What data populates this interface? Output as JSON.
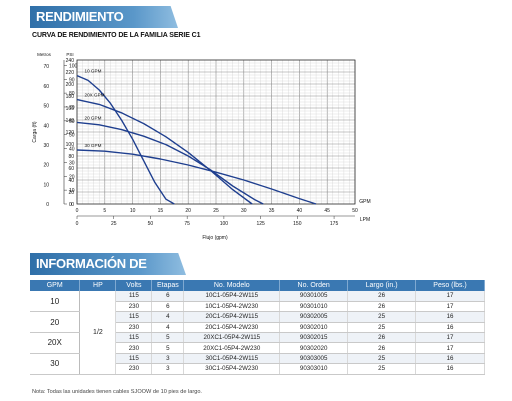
{
  "banner_rendimiento": "RENDIMIENTO",
  "subtitle": "CURVA DE RENDIMIENTO DE LA FAMILIA SERIE C1",
  "banner_pedido": "INFORMACIÓN DE PEDIDO",
  "note": "Nota: Todas las unidades tienen cables SJOOW de 10 pies de largo.",
  "chart_data": {
    "type": "line",
    "title": "CURVA DE RENDIMIENTO DE LA FAMILIA SERIE C1",
    "xlabel": "Flujo (gpm)",
    "ylabel_left": "Carga (ft)",
    "ylabel_right": "PSI",
    "ylabel_meters": "Metros",
    "x_units_gpm": "GPM",
    "x_units_lpm": "LPM",
    "xlim": [
      0,
      50
    ],
    "ylim": [
      0,
      240
    ],
    "grid": true,
    "x_ticks_gpm": [
      "0",
      "5",
      "10",
      "15",
      "20",
      "25",
      "30",
      "35",
      "40",
      "45",
      "50"
    ],
    "x_ticks_lpm": [
      "0",
      "25",
      "50",
      "75",
      "100",
      "125",
      "150",
      "175"
    ],
    "y_ticks_ft": [
      "0",
      "20",
      "40",
      "60",
      "80",
      "100",
      "120",
      "140",
      "160",
      "180",
      "200",
      "220",
      "240"
    ],
    "y_ticks_psi": [
      "0",
      "10",
      "20",
      "30",
      "40",
      "50",
      "60",
      "70",
      "80",
      "90",
      "100"
    ],
    "y_ticks_m": [
      "0",
      "10",
      "20",
      "30",
      "40",
      "50",
      "60",
      "70"
    ],
    "series": [
      {
        "name": "10 GPM",
        "x": [
          0,
          2,
          4,
          6,
          8,
          10,
          12,
          14,
          16,
          17.5
        ],
        "y": [
          214,
          206,
          190,
          168,
          140,
          108,
          72,
          36,
          8,
          0
        ]
      },
      {
        "name": "20X GPM",
        "x": [
          0,
          4,
          8,
          12,
          16,
          20,
          24,
          28,
          31.5
        ],
        "y": [
          174,
          166,
          152,
          134,
          112,
          86,
          56,
          24,
          0
        ]
      },
      {
        "name": "20 GPM",
        "x": [
          0,
          4,
          8,
          12,
          16,
          20,
          24,
          28,
          32,
          33.5
        ],
        "y": [
          136,
          132,
          124,
          113,
          99,
          80,
          57,
          30,
          7,
          0
        ]
      },
      {
        "name": "30 GPM",
        "x": [
          0,
          5,
          10,
          15,
          20,
          25,
          30,
          35,
          40,
          43
        ],
        "y": [
          90,
          88,
          83,
          75,
          65,
          53,
          40,
          25,
          9,
          0
        ]
      }
    ]
  },
  "table": {
    "headers": [
      "GPM",
      "HP",
      "Volts",
      "Etapas",
      "No. Modelo",
      "No. Orden",
      "Largo (in.)",
      "Peso (lbs.)"
    ],
    "hp_value": "1/2",
    "groups": [
      {
        "gpm": "10",
        "rows": [
          {
            "volts": "115",
            "etapas": "6",
            "modelo": "10C1-05P4-2W115",
            "orden": "90301005",
            "largo": "26",
            "peso": "17"
          },
          {
            "volts": "230",
            "etapas": "6",
            "modelo": "10C1-05P4-2W230",
            "orden": "90301010",
            "largo": "26",
            "peso": "17"
          }
        ]
      },
      {
        "gpm": "20",
        "rows": [
          {
            "volts": "115",
            "etapas": "4",
            "modelo": "20C1-05P4-2W115",
            "orden": "90302005",
            "largo": "25",
            "peso": "16"
          },
          {
            "volts": "230",
            "etapas": "4",
            "modelo": "20C1-05P4-2W230",
            "orden": "90302010",
            "largo": "25",
            "peso": "16"
          }
        ]
      },
      {
        "gpm": "20X",
        "rows": [
          {
            "volts": "115",
            "etapas": "5",
            "modelo": "20XC1-05P4-2W115",
            "orden": "90302015",
            "largo": "26",
            "peso": "17"
          },
          {
            "volts": "230",
            "etapas": "5",
            "modelo": "20XC1-05P4-2W230",
            "orden": "90302020",
            "largo": "26",
            "peso": "17"
          }
        ]
      },
      {
        "gpm": "30",
        "rows": [
          {
            "volts": "115",
            "etapas": "3",
            "modelo": "30C1-05P4-2W115",
            "orden": "90303005",
            "largo": "25",
            "peso": "16"
          },
          {
            "volts": "230",
            "etapas": "3",
            "modelo": "30C1-05P4-2W230",
            "orden": "90303010",
            "largo": "25",
            "peso": "16"
          }
        ]
      }
    ]
  },
  "colors": {
    "banner": "#3a78b2",
    "curve": "#1f3f8f",
    "grid": "#bdbdbd"
  }
}
